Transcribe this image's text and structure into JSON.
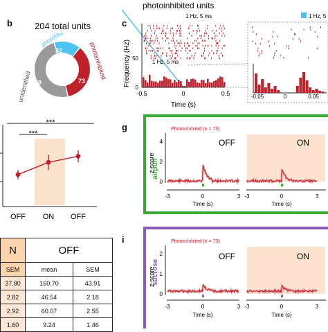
{
  "header": {
    "title": "photoinhibited units"
  },
  "panel_b": {
    "letter": "b",
    "total": "204 total units",
    "segments": [
      {
        "name": "phototagged",
        "value": 32,
        "color": "#4fc3f0"
      },
      {
        "name": "photoinhibited",
        "value": 73,
        "color": "#c0202a"
      },
      {
        "name": "unidentified",
        "value": 99,
        "color": "#9a9a9a"
      }
    ]
  },
  "panel_c": {
    "letter": "c",
    "stim_label": "1 Hz, 5 ms",
    "legend_label": "1 Hz, 5 ms",
    "ylabel": "Frequency (Hz)",
    "xlabel": "Time (s)",
    "xticks": [
      "-0.5",
      "0",
      "0.5"
    ],
    "yticks": [
      "0",
      "50"
    ],
    "inset_xticks": [
      "-0.05",
      "0",
      "0.05"
    ],
    "accent": "#c0202a",
    "stim_color": "#4fc3f0"
  },
  "panel_stats": {
    "sig1": "***",
    "sig2": "***",
    "xticks": [
      "OFF",
      "ON",
      "OFF"
    ],
    "points": [
      0.42,
      0.58,
      0.66
    ],
    "errors": [
      0.06,
      0.1,
      0.08
    ]
  },
  "table": {
    "on_header": "N",
    "off_header": "OFF",
    "sub_headers": [
      "SEM",
      "mean",
      "SEM"
    ],
    "rows": [
      [
        "37.80",
        "160.70",
        "43.91"
      ],
      [
        "2.82",
        "46.54",
        "2.18"
      ],
      [
        "2.92",
        "60.07",
        "2.55"
      ],
      [
        "1.60",
        "9.24",
        "1.46"
      ]
    ]
  },
  "panel_g": {
    "letter": "g",
    "condition": "airpuff",
    "title": "Photoinhibited (n = 73)",
    "off_label": "OFF",
    "on_label": "ON",
    "ylabel": "z-score",
    "xlabel": "Time (s)",
    "yticks": [
      "0",
      "2",
      "4"
    ],
    "xticks": [
      "-3",
      "0",
      "3"
    ],
    "frame_color": "#3aaa35"
  },
  "panel_i": {
    "letter": "i",
    "condition": "sucrose",
    "title": "Photoinhibited (n = 73)",
    "off_label": "OFF",
    "on_label": "ON",
    "ylabel": "z-score",
    "xlabel": "Time (s)",
    "yticks": [
      "0",
      "1",
      "2"
    ],
    "xticks": [
      "-3",
      "0",
      "3"
    ],
    "frame_color": "#8a5cc0"
  }
}
